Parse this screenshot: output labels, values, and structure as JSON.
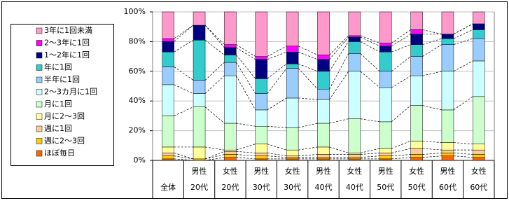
{
  "chart_data": {
    "type": "bar",
    "stacked": true,
    "categories": [
      [
        "全体"
      ],
      [
        "男性",
        "20代"
      ],
      [
        "女性",
        "20代"
      ],
      [
        "男性",
        "30代"
      ],
      [
        "女性",
        "30代"
      ],
      [
        "男性",
        "40代"
      ],
      [
        "女性",
        "40代"
      ],
      [
        "男性",
        "50代"
      ],
      [
        "女性",
        "50代"
      ],
      [
        "男性",
        "60代"
      ],
      [
        "女性",
        "60代"
      ]
    ],
    "series": [
      {
        "name": "ほぼ毎日",
        "color": "#ff6600",
        "values": [
          1,
          0,
          2,
          1,
          1,
          1,
          1,
          1,
          2,
          3,
          2
        ]
      },
      {
        "name": "週に2～3回",
        "color": "#ffcc00",
        "values": [
          2,
          1,
          2,
          2,
          1,
          1,
          1,
          2,
          2,
          2,
          2
        ]
      },
      {
        "name": "週に1回",
        "color": "#ffcc99",
        "values": [
          2,
          0,
          2,
          2,
          1,
          2,
          2,
          2,
          4,
          2,
          3
        ]
      },
      {
        "name": "月に2～3回",
        "color": "#ffff99",
        "values": [
          4,
          8,
          1,
          6,
          4,
          5,
          1,
          3,
          5,
          5,
          4
        ]
      },
      {
        "name": "月に1回",
        "color": "#ccffcc",
        "values": [
          21,
          27,
          18,
          12,
          15,
          16,
          23,
          18,
          24,
          22,
          32
        ]
      },
      {
        "name": "2～3カ月に1回",
        "color": "#ccffff",
        "values": [
          21,
          9,
          32,
          11,
          20,
          16,
          32,
          23,
          20,
          26,
          24
        ]
      },
      {
        "name": "半年に1回",
        "color": "#99ccff",
        "values": [
          12,
          9,
          9,
          11,
          20,
          7,
          12,
          11,
          13,
          18,
          15
        ]
      },
      {
        "name": "年に1回",
        "color": "#33cccc",
        "values": [
          10,
          27,
          5,
          10,
          3,
          12,
          8,
          13,
          8,
          4,
          6
        ]
      },
      {
        "name": "1～2年に1回",
        "color": "#000080",
        "values": [
          7,
          10,
          5,
          13,
          8,
          8,
          3,
          4,
          7,
          3,
          4
        ]
      },
      {
        "name": "2～3年に1回",
        "color": "#ff00ff",
        "values": [
          2,
          0,
          2,
          2,
          4,
          3,
          1,
          2,
          3,
          0,
          0
        ]
      },
      {
        "name": "3年に1回未満",
        "color": "#ff99cc",
        "values": [
          18,
          9,
          22,
          30,
          23,
          29,
          16,
          21,
          12,
          15,
          8
        ]
      }
    ],
    "ylim": [
      0,
      100
    ],
    "yticks": [
      {
        "value": 0,
        "label": "0%"
      },
      {
        "value": 20,
        "label": "20%"
      },
      {
        "value": 40,
        "label": "40%"
      },
      {
        "value": 60,
        "label": "60%"
      },
      {
        "value": 80,
        "label": "80%"
      },
      {
        "value": 100,
        "label": "100%"
      }
    ],
    "grid": true,
    "legend": "left"
  }
}
